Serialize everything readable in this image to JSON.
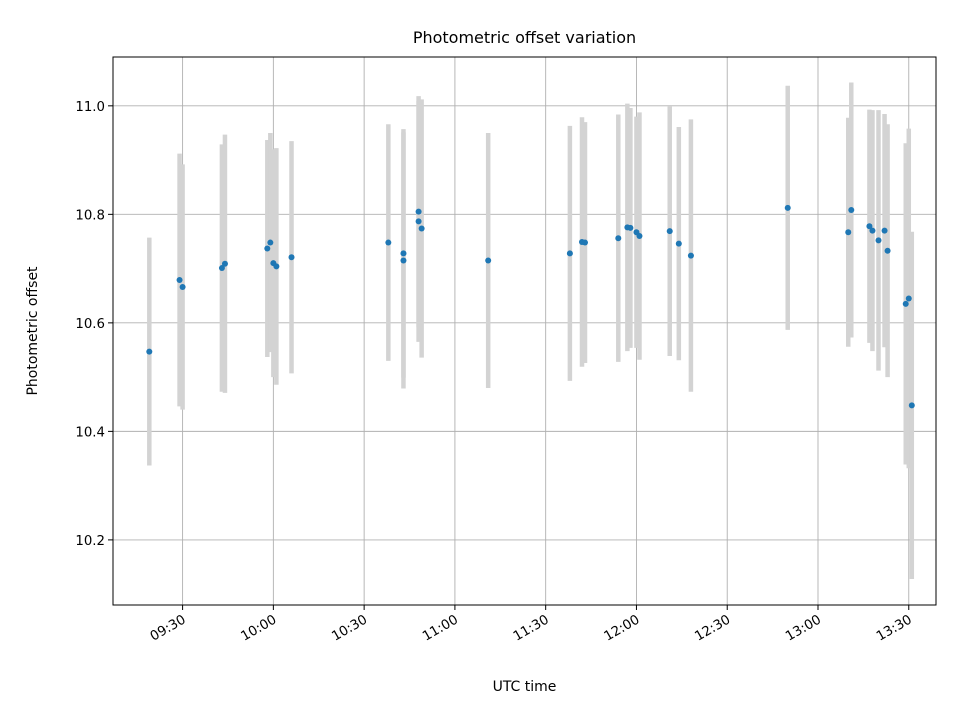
{
  "chart_data": {
    "type": "scatter",
    "title": "Photometric offset variation",
    "xlabel": "UTC time",
    "ylabel": "Photometric offset",
    "x_unit": "UTC time (hh:mm)",
    "xlim": [
      "09:07",
      "13:39"
    ],
    "ylim": [
      10.08,
      11.09
    ],
    "x_ticks": [
      "09:30",
      "10:00",
      "10:30",
      "11:00",
      "11:30",
      "12:00",
      "12:30",
      "13:00",
      "13:30"
    ],
    "y_ticks": [
      "10.2",
      "10.4",
      "10.6",
      "10.8",
      "11.0"
    ],
    "grid": true,
    "errorbar_color": "#d3d3d3",
    "marker_color": "#1f77b4",
    "points": [
      {
        "time": "09:19",
        "y": 10.547,
        "err": 0.21
      },
      {
        "time": "09:29",
        "y": 10.679,
        "err": 0.233
      },
      {
        "time": "09:30",
        "y": 10.666,
        "err": 0.226
      },
      {
        "time": "09:43",
        "y": 10.701,
        "err": 0.228
      },
      {
        "time": "09:44",
        "y": 10.709,
        "err": 0.238
      },
      {
        "time": "09:58",
        "y": 10.737,
        "err": 0.2
      },
      {
        "time": "09:59",
        "y": 10.748,
        "err": 0.202
      },
      {
        "time": "10:00",
        "y": 10.71,
        "err": 0.21
      },
      {
        "time": "10:01",
        "y": 10.704,
        "err": 0.218
      },
      {
        "time": "10:06",
        "y": 10.721,
        "err": 0.214
      },
      {
        "time": "10:38",
        "y": 10.748,
        "err": 0.218
      },
      {
        "time": "10:43",
        "y": 10.715,
        "err": 0.236
      },
      {
        "time": "10:43",
        "y": 10.728,
        "err": 0.229
      },
      {
        "time": "10:48",
        "y": 10.805,
        "err": 0.213
      },
      {
        "time": "10:48",
        "y": 10.787,
        "err": 0.222
      },
      {
        "time": "10:49",
        "y": 10.774,
        "err": 0.238
      },
      {
        "time": "11:11",
        "y": 10.715,
        "err": 0.235
      },
      {
        "time": "11:38",
        "y": 10.728,
        "err": 0.235
      },
      {
        "time": "11:42",
        "y": 10.749,
        "err": 0.23
      },
      {
        "time": "11:43",
        "y": 10.748,
        "err": 0.222
      },
      {
        "time": "11:54",
        "y": 10.756,
        "err": 0.228
      },
      {
        "time": "11:57",
        "y": 10.776,
        "err": 0.228
      },
      {
        "time": "11:58",
        "y": 10.775,
        "err": 0.221
      },
      {
        "time": "12:00",
        "y": 10.767,
        "err": 0.213
      },
      {
        "time": "12:01",
        "y": 10.76,
        "err": 0.228
      },
      {
        "time": "12:11",
        "y": 10.769,
        "err": 0.23
      },
      {
        "time": "12:14",
        "y": 10.746,
        "err": 0.215
      },
      {
        "time": "12:18",
        "y": 10.724,
        "err": 0.251
      },
      {
        "time": "12:50",
        "y": 10.812,
        "err": 0.225
      },
      {
        "time": "13:10",
        "y": 10.767,
        "err": 0.211
      },
      {
        "time": "13:11",
        "y": 10.808,
        "err": 0.235
      },
      {
        "time": "13:17",
        "y": 10.778,
        "err": 0.215
      },
      {
        "time": "13:18",
        "y": 10.77,
        "err": 0.222
      },
      {
        "time": "13:20",
        "y": 10.752,
        "err": 0.24
      },
      {
        "time": "13:22",
        "y": 10.77,
        "err": 0.215
      },
      {
        "time": "13:23",
        "y": 10.733,
        "err": 0.233
      },
      {
        "time": "13:29",
        "y": 10.635,
        "err": 0.296
      },
      {
        "time": "13:30",
        "y": 10.645,
        "err": 0.313
      },
      {
        "time": "13:31",
        "y": 10.448,
        "err": 0.32
      }
    ]
  }
}
